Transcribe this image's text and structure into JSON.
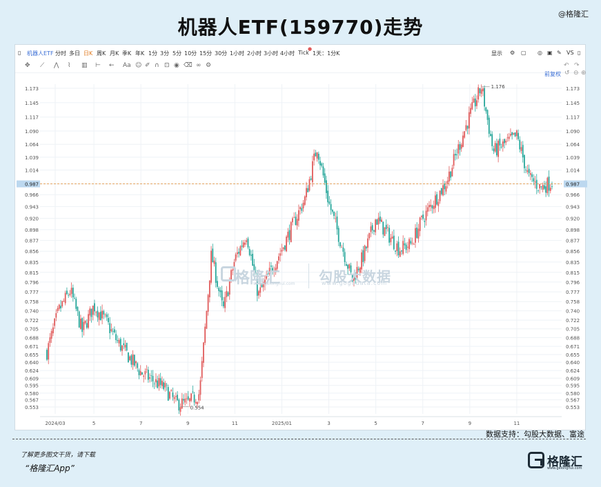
{
  "page_title": "机器人ETF(159770)走势",
  "brand_tag": "@格隆汇",
  "toolbar": {
    "items": [
      "机器人ETF",
      "分时",
      "多日",
      "日K",
      "周K",
      "月K",
      "季K",
      "年K",
      "1分",
      "3分",
      "5分",
      "10分",
      "15分",
      "30分",
      "1小时",
      "2小时",
      "3小时",
      "4小时",
      "Tick",
      "1天：1分K"
    ],
    "right_items": [
      "显示",
      "VS"
    ],
    "accent": "#3b6fd6",
    "active_color": "#e07a1f",
    "adjust_label": "前复权"
  },
  "watermark": {
    "left_name": "格隆汇",
    "left_url": "www.gelonghui.com",
    "right_name": "勾股大数据",
    "right_url": "www.gogudata.com"
  },
  "chart_data": {
    "type": "candlestick",
    "title": "机器人ETF(159770)走势",
    "y_ticks": [
      1.173,
      1.145,
      1.117,
      1.09,
      1.064,
      1.039,
      1.014,
      0.987,
      0.966,
      0.943,
      0.92,
      0.898,
      0.877,
      0.856,
      0.835,
      0.815,
      0.796,
      0.777,
      0.758,
      0.74,
      0.722,
      0.705,
      0.688,
      0.671,
      0.655,
      0.64,
      0.624,
      0.609,
      0.595,
      0.58,
      0.567,
      0.553
    ],
    "x_ticks": [
      "2024/03",
      "5",
      "7",
      "9",
      "11",
      "2025/01",
      "3",
      "5",
      "7",
      "9",
      "11"
    ],
    "current_price": 0.987,
    "high_annotation": 1.176,
    "low_annotation": 0.554,
    "up_color": "#e05a5a",
    "down_color": "#26a69a",
    "anchors": [
      [
        "2024/03",
        0.66
      ],
      [
        "2024/03",
        0.74
      ],
      [
        "2024/04",
        0.78
      ],
      [
        "2024/04",
        0.7
      ],
      [
        "2024/05",
        0.75
      ],
      [
        "2024/05",
        0.72
      ],
      [
        "2024/06",
        0.68
      ],
      [
        "2024/07",
        0.62
      ],
      [
        "2024/08",
        0.59
      ],
      [
        "2024/08",
        0.56
      ],
      [
        "2024/09",
        0.56
      ],
      [
        "2024/09",
        0.58
      ],
      [
        "2024/10",
        0.85
      ],
      [
        "2024/10",
        0.74
      ],
      [
        "2024/11",
        0.84
      ],
      [
        "2024/11",
        0.89
      ],
      [
        "2024/12",
        0.77
      ],
      [
        "2025/01",
        0.86
      ],
      [
        "2025/02",
        0.96
      ],
      [
        "2025/02",
        1.06
      ],
      [
        "2025/03",
        0.95
      ],
      [
        "2025/04",
        0.8
      ],
      [
        "2025/04",
        0.85
      ],
      [
        "2025/05",
        0.92
      ],
      [
        "2025/06",
        0.86
      ],
      [
        "2025/06",
        0.87
      ],
      [
        "2025/07",
        0.92
      ],
      [
        "2025/08",
        0.99
      ],
      [
        "2025/09",
        1.12
      ],
      [
        "2025/09",
        1.176
      ],
      [
        "2025/10",
        1.05
      ],
      [
        "2025/11",
        1.08
      ],
      [
        "2025/11",
        1.0
      ],
      [
        "2025/12",
        0.98
      ],
      [
        "2025/12",
        0.99
      ]
    ]
  },
  "source_text": "数据支持：勾股大数据、富途",
  "promo": {
    "line1": "了解更多图文干货，请下载",
    "line2": "“格隆汇App”"
  },
  "logo": {
    "name": "格隆汇",
    "url": "www.gelonghui.com"
  }
}
